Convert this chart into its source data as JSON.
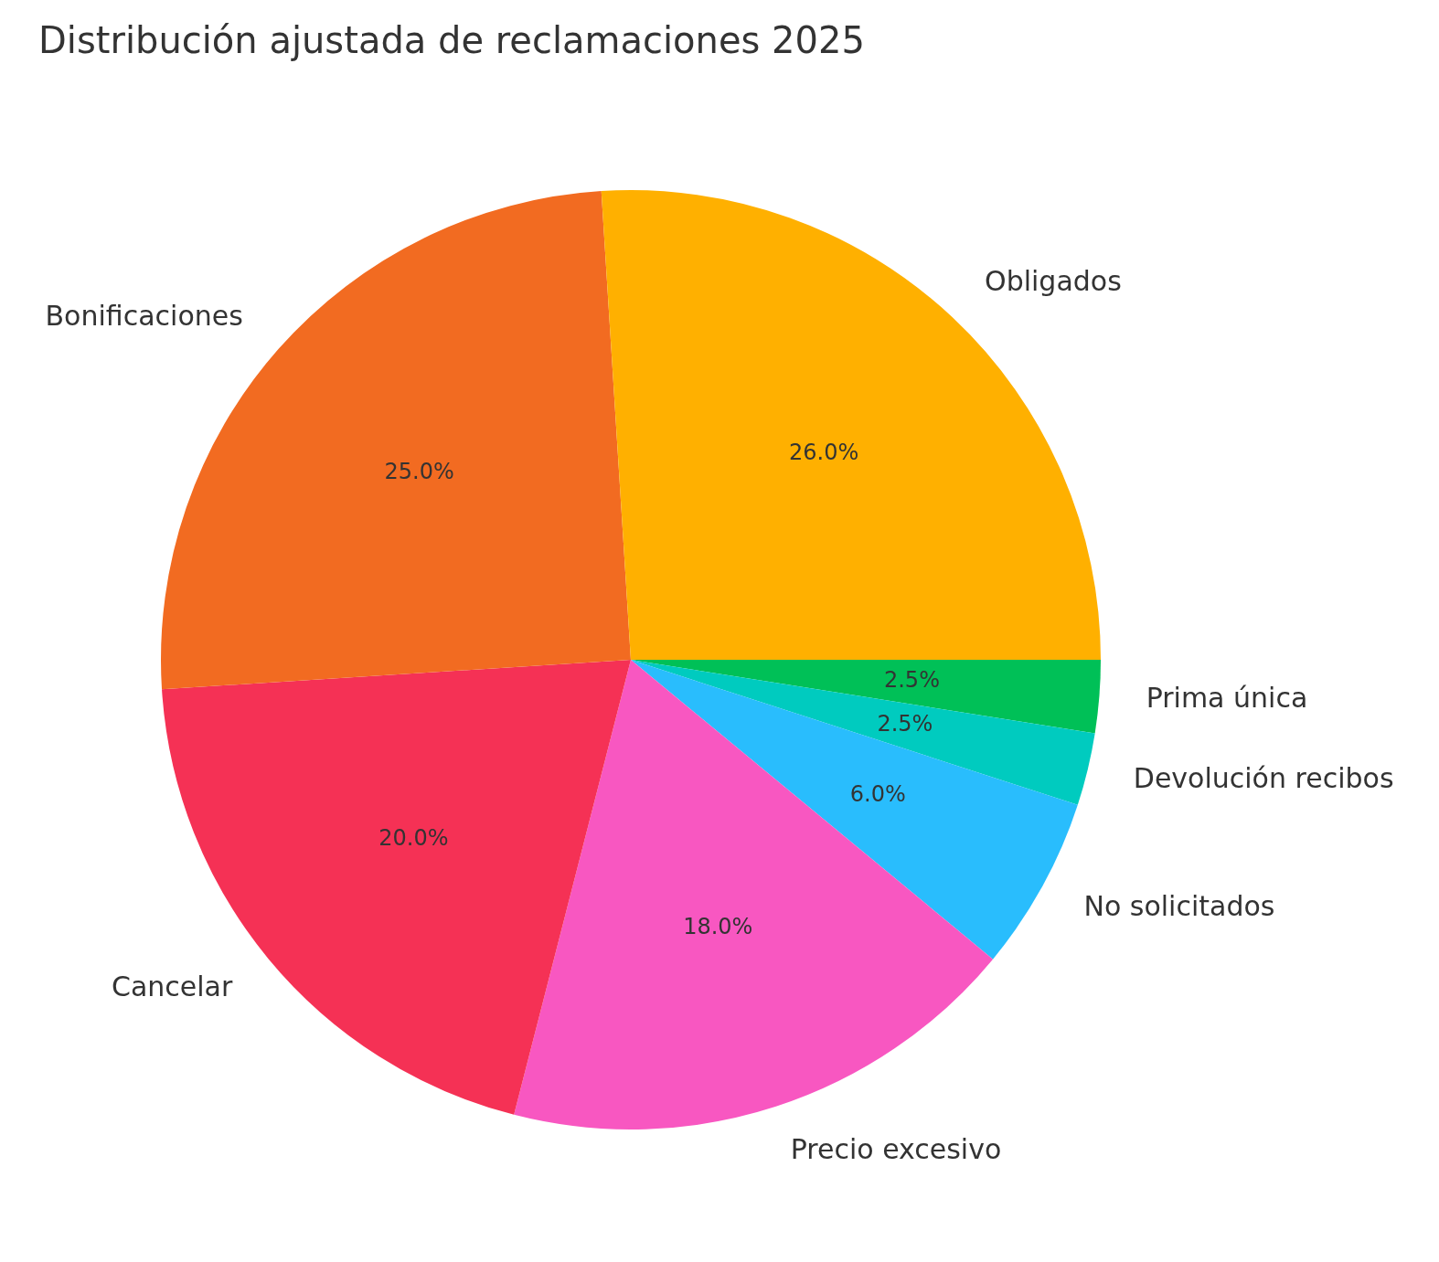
{
  "chart_data": {
    "type": "pie",
    "title": "Distribución ajustada de reclamaciones 2025",
    "categories": [
      "Obligados",
      "Bonificaciones",
      "Cancelar",
      "Precio excesivo",
      "No solicitados",
      "Devolución recibos",
      "Prima única"
    ],
    "values": [
      26,
      25,
      20,
      18,
      6,
      2.5,
      2.5
    ],
    "value_labels": [
      "26.0%",
      "25.0%",
      "20.0%",
      "18.0%",
      "6.0%",
      "2.5%",
      "2.5%"
    ],
    "colors": [
      "#ffb000",
      "#f26b21",
      "#f53155",
      "#f857c1",
      "#29bdfd",
      "#00cbbf",
      "#00c057"
    ]
  }
}
